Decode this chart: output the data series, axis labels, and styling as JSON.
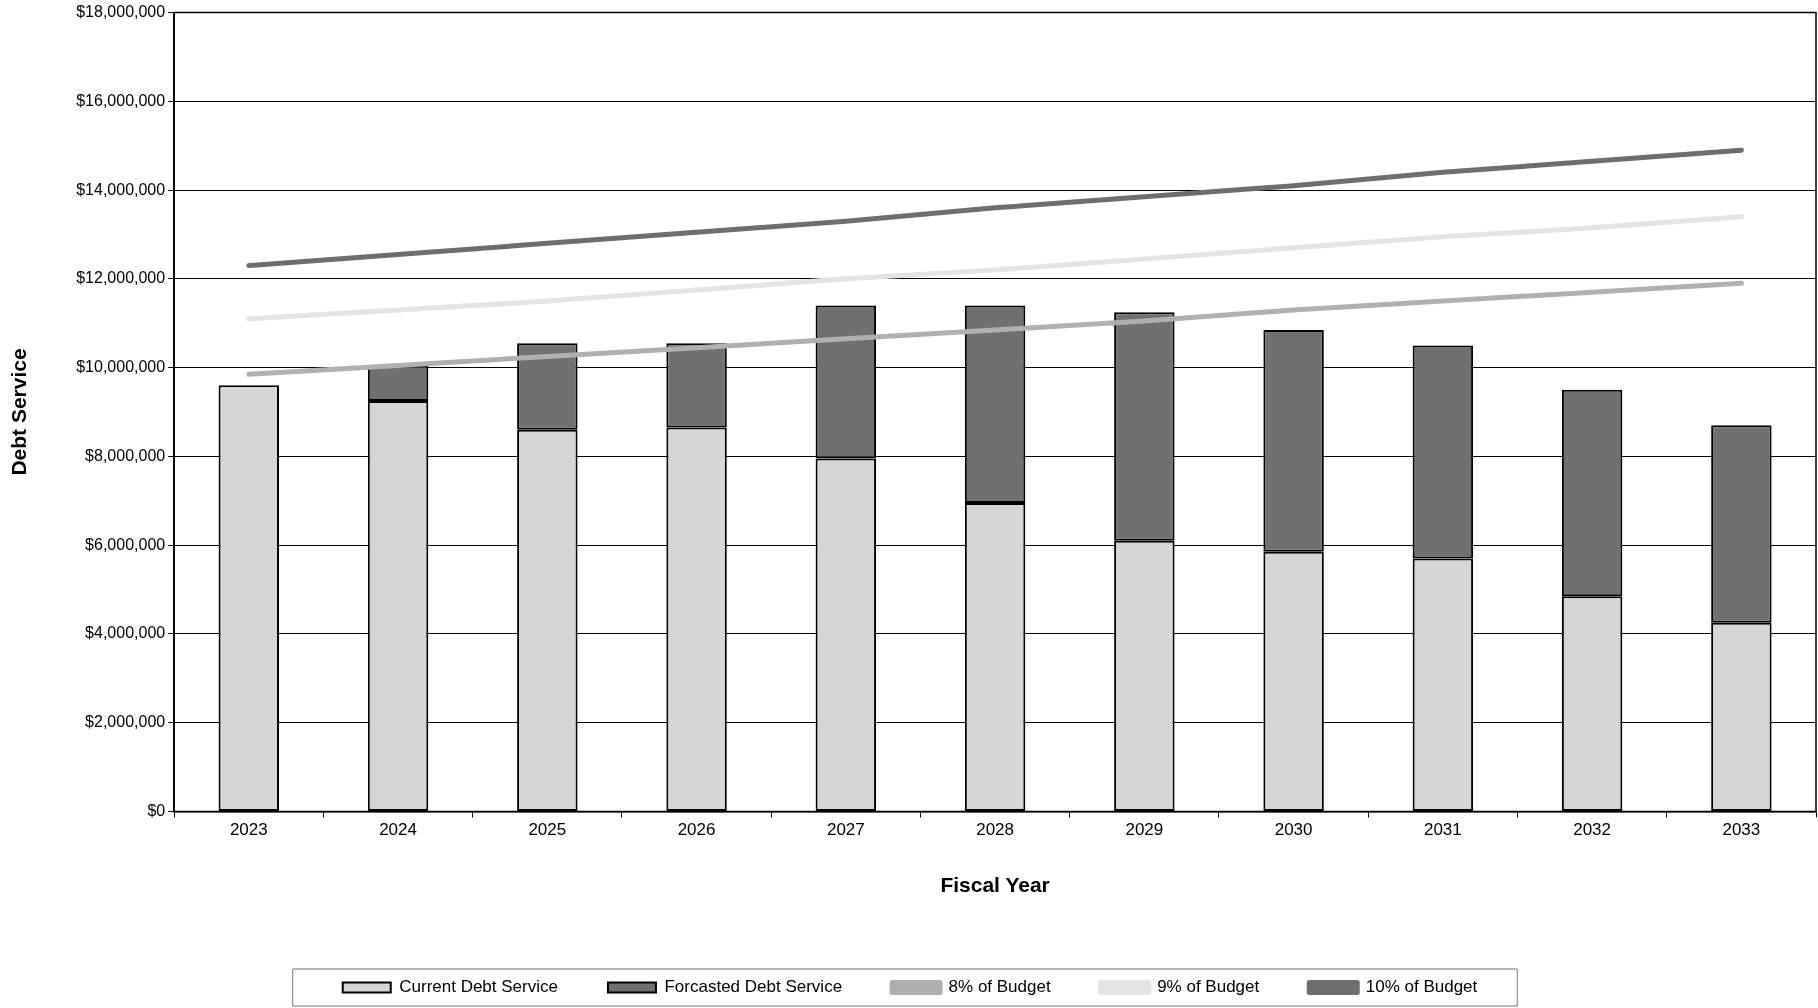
{
  "chart_data": {
    "type": "bar",
    "xlabel": "Fiscal Year",
    "ylabel": "Debt Service",
    "categories": [
      "2023",
      "2024",
      "2025",
      "2026",
      "2027",
      "2028",
      "2029",
      "2030",
      "2031",
      "2032",
      "2033"
    ],
    "stacked": true,
    "grid": "y",
    "legend": "bottom",
    "ylim": [
      0,
      18000000
    ],
    "yticks": [
      {
        "value": 0,
        "label": "$0"
      },
      {
        "value": 2000000,
        "label": "$2,000,000"
      },
      {
        "value": 4000000,
        "label": "$4,000,000"
      },
      {
        "value": 6000000,
        "label": "$6,000,000"
      },
      {
        "value": 8000000,
        "label": "$8,000,000"
      },
      {
        "value": 10000000,
        "label": "$10,000,000"
      },
      {
        "value": 12000000,
        "label": "$12,000,000"
      },
      {
        "value": 14000000,
        "label": "$14,000,000"
      },
      {
        "value": 16000000,
        "label": "$16,000,000"
      },
      {
        "value": 18000000,
        "label": "$18,000,000"
      }
    ],
    "series": [
      {
        "name": "Current Debt Service",
        "color": "#d6d6d6",
        "values": [
          9600000,
          9250000,
          8600000,
          8650000,
          7950000,
          6950000,
          6100000,
          5850000,
          5700000,
          4850000,
          4250000
        ]
      },
      {
        "name": "Forcasted Debt Service",
        "color": "#707070",
        "values": [
          null,
          800000,
          1950000,
          1900000,
          3450000,
          4450000,
          5150000,
          5000000,
          4800000,
          4650000,
          4450000
        ]
      },
      {
        "name": "8% of Budget",
        "type": "line",
        "color": "#b0b0b0",
        "values": [
          9850000,
          10050000,
          10250000,
          10450000,
          10650000,
          10850000,
          11050000,
          11300000,
          11500000,
          11700000,
          11900000
        ]
      },
      {
        "name": "9% of Budget",
        "type": "line",
        "color": "#e4e4e4",
        "values": [
          11100000,
          11300000,
          11500000,
          11750000,
          12000000,
          12200000,
          12450000,
          12700000,
          12950000,
          13150000,
          13400000
        ]
      },
      {
        "name": "10% of Budget",
        "type": "line",
        "color": "#6e6e6e",
        "values": [
          12300000,
          12550000,
          12800000,
          13050000,
          13300000,
          13600000,
          13850000,
          14100000,
          14400000,
          14650000,
          14900000
        ]
      }
    ]
  }
}
